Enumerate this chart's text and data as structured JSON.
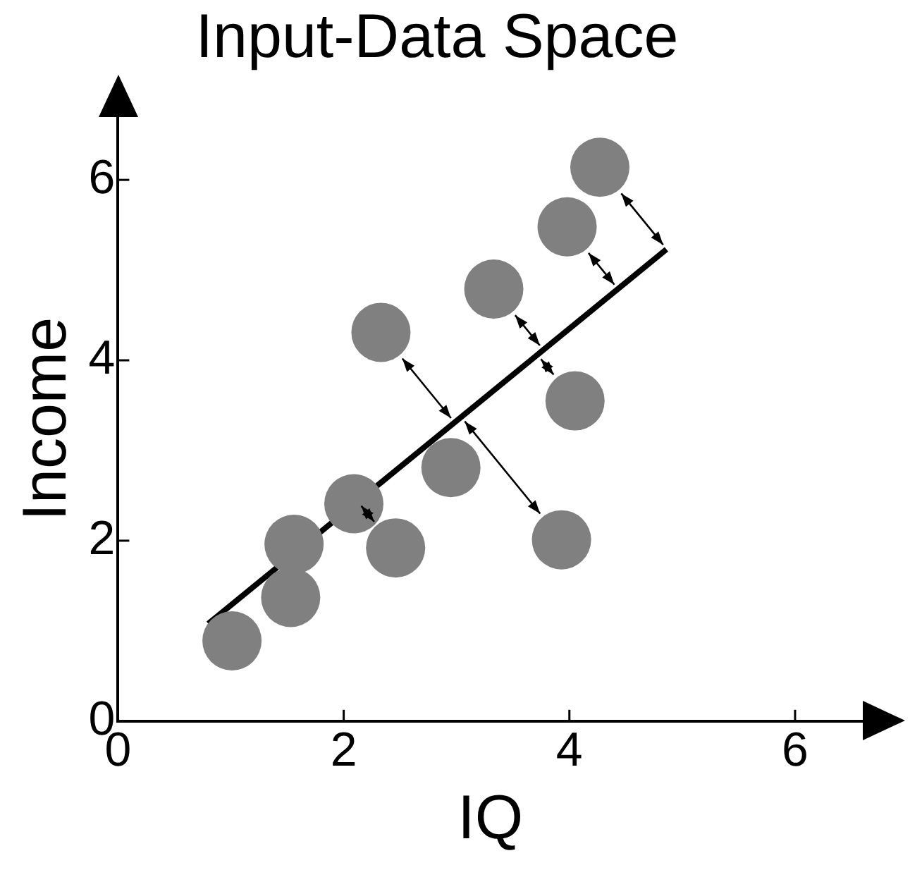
{
  "chart_data": {
    "type": "scatter",
    "title": "Input-Data Space",
    "xlabel": "IQ",
    "ylabel": "Income",
    "xlim": [
      0,
      6.6
    ],
    "ylim": [
      0,
      6.7
    ],
    "xticks": [
      0,
      2,
      4,
      6
    ],
    "yticks": [
      0,
      2,
      4,
      6
    ],
    "grid": false,
    "legend": false,
    "series": [
      {
        "type": "scatter",
        "color": "#808080",
        "marker": "circle",
        "x": [
          1.01,
          1.53,
          1.56,
          2.09,
          2.33,
          2.46,
          2.95,
          3.33,
          3.93,
          3.98,
          4.05,
          4.27
        ],
        "values": [
          0.89,
          1.37,
          1.96,
          2.41,
          4.31,
          1.92,
          2.81,
          4.79,
          2.01,
          5.48,
          3.55,
          6.14
        ]
      },
      {
        "type": "line",
        "color": "#000000",
        "marker": "none",
        "line_style": "solid",
        "x": [
          0.8,
          4.86
        ],
        "values": [
          1.08,
          5.23
        ]
      }
    ]
  }
}
